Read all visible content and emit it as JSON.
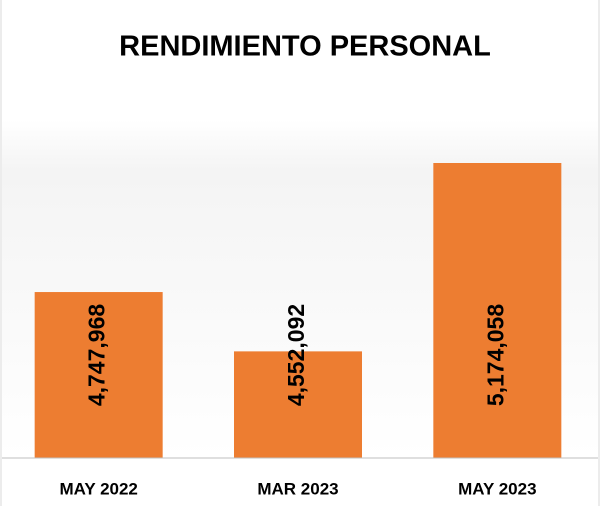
{
  "chart_data": {
    "type": "bar",
    "title": "RENDIMIENTO PERSONAL",
    "categories": [
      "MAY 2022",
      "MAR 2023",
      "MAY 2023"
    ],
    "values": [
      4747968,
      4552092,
      5174058
    ],
    "value_labels": [
      "4,747,968",
      "4,552,092",
      "5,174,058"
    ],
    "color": "#ed7d31",
    "ylim": [
      4200000,
      5250000
    ]
  }
}
